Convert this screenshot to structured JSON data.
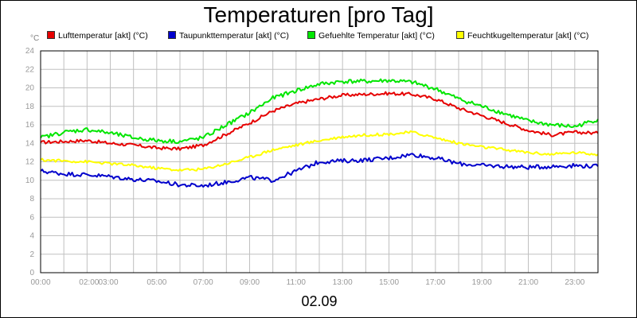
{
  "colors": {
    "grid": "#c0c0c0",
    "tick_text": "#999999",
    "axis": "#000000"
  },
  "chart_data": {
    "type": "line",
    "title": "Temperaturen [pro Tag]",
    "ylabel": "°C",
    "xlabel": "02.09",
    "ylim": [
      0,
      24
    ],
    "yticks": [
      0,
      2,
      4,
      6,
      8,
      10,
      12,
      14,
      16,
      18,
      20,
      22,
      24
    ],
    "xlim": [
      "00:00",
      "24:00"
    ],
    "xtick_labels": [
      {
        "t": 0,
        "label": "00:00"
      },
      {
        "t": 2,
        "label": "02:00"
      },
      {
        "t": 3,
        "label": "03:00"
      },
      {
        "t": 5,
        "label": "05:00"
      },
      {
        "t": 7,
        "label": "07:00"
      },
      {
        "t": 9,
        "label": "09:00"
      },
      {
        "t": 11,
        "label": "11:00"
      },
      {
        "t": 13,
        "label": "13:00"
      },
      {
        "t": 15,
        "label": "15:00"
      },
      {
        "t": 17,
        "label": "17:00"
      },
      {
        "t": 19,
        "label": "19:00"
      },
      {
        "t": 21,
        "label": "21:00"
      },
      {
        "t": 23,
        "label": "23:00"
      }
    ],
    "grid": true,
    "legend_position": "top",
    "x": [
      "00:00",
      "01:00",
      "02:00",
      "03:00",
      "04:00",
      "05:00",
      "06:00",
      "07:00",
      "08:00",
      "09:00",
      "10:00",
      "11:00",
      "12:00",
      "13:00",
      "14:00",
      "15:00",
      "16:00",
      "17:00",
      "18:00",
      "19:00",
      "20:00",
      "21:00",
      "22:00",
      "23:00",
      "24:00"
    ],
    "series": [
      {
        "name": "Lufttemperatur [akt] (°C)",
        "color": "#e60000",
        "values": [
          14.1,
          14.2,
          14.3,
          14.0,
          13.8,
          13.5,
          13.4,
          13.8,
          15.0,
          16.2,
          17.5,
          18.3,
          18.8,
          19.2,
          19.3,
          19.4,
          19.3,
          18.8,
          17.8,
          17.0,
          16.2,
          15.4,
          14.9,
          15.2,
          15.1
        ]
      },
      {
        "name": "Taupunkttemperatur [akt] (°C)",
        "color": "#0000cc",
        "values": [
          11.0,
          10.7,
          10.6,
          10.4,
          10.1,
          9.9,
          9.5,
          9.4,
          9.8,
          10.3,
          10.0,
          11.0,
          12.0,
          12.1,
          12.2,
          12.4,
          12.8,
          12.4,
          11.8,
          11.6,
          11.5,
          11.4,
          11.5,
          11.6,
          11.5
        ]
      },
      {
        "name": "Gefuehlte Temperatur [akt] (°C)",
        "color": "#00e600",
        "values": [
          14.6,
          15.2,
          15.5,
          15.1,
          14.6,
          14.3,
          14.2,
          14.6,
          16.0,
          17.3,
          18.9,
          19.7,
          20.4,
          20.7,
          20.7,
          20.8,
          20.6,
          19.9,
          18.8,
          18.0,
          17.2,
          16.4,
          16.0,
          15.8,
          16.6
        ]
      },
      {
        "name": "Feuchtkugeltemperatur [akt] (°C)",
        "color": "#ffff00",
        "values": [
          12.2,
          12.1,
          12.0,
          11.8,
          11.6,
          11.3,
          11.1,
          11.2,
          11.8,
          12.5,
          13.3,
          13.8,
          14.3,
          14.7,
          14.9,
          15.0,
          15.2,
          14.6,
          14.0,
          13.6,
          13.3,
          13.0,
          12.8,
          13.0,
          12.8
        ]
      }
    ]
  }
}
